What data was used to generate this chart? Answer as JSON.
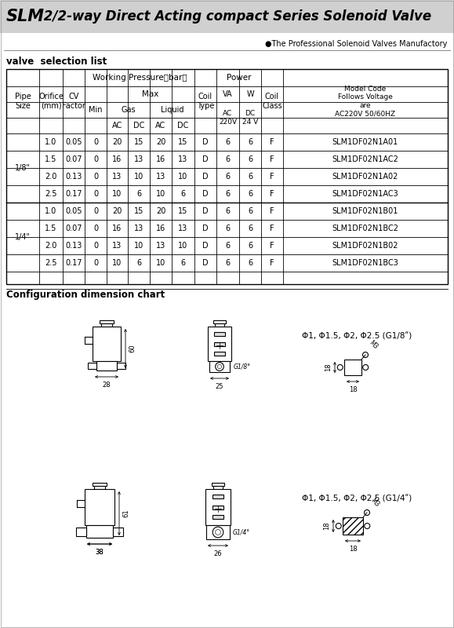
{
  "title_bold": "SLM",
  "title_rest": " 2/2-way Direct Acting compact Series Solenoid Valve",
  "subtitle": "●The Professional Solenoid Valves Manufactory",
  "section1": "valve  selection list",
  "section2": "Configuration dimension chart",
  "bg_color": "#ffffff",
  "orifice": [
    "1.0",
    "1.5",
    "2.0",
    "2.5",
    "1.0",
    "1.5",
    "2.0",
    "2.5"
  ],
  "cv_factor": [
    "0.05",
    "0.07",
    "0.13",
    "0.17",
    "0.05",
    "0.07",
    "0.13",
    "0.17"
  ],
  "min_val": [
    "0",
    "0",
    "0",
    "0",
    "0",
    "0",
    "0",
    "0"
  ],
  "gas_ac": [
    "20",
    "16",
    "13",
    "10",
    "20",
    "16",
    "13",
    "10"
  ],
  "gas_dc": [
    "15",
    "13",
    "10",
    "6",
    "15",
    "13",
    "10",
    "6"
  ],
  "liq_ac": [
    "20",
    "16",
    "13",
    "10",
    "20",
    "16",
    "13",
    "10"
  ],
  "liq_dc": [
    "15",
    "13",
    "10",
    "6",
    "15",
    "13",
    "10",
    "6"
  ],
  "coil_type": [
    "D",
    "D",
    "D",
    "D",
    "D",
    "D",
    "D",
    "D"
  ],
  "va_ac": [
    "6",
    "6",
    "6",
    "6",
    "6",
    "6",
    "6",
    "6"
  ],
  "w_dc": [
    "6",
    "6",
    "6",
    "6",
    "6",
    "6",
    "6",
    "6"
  ],
  "coil_class": [
    "F",
    "F",
    "F",
    "F",
    "F",
    "F",
    "F",
    "F"
  ],
  "model_code": [
    "SLM1DF02N1A01",
    "SLM1DF02N1AC2",
    "SLM1DF02N1A02",
    "SLM1DF02N1AC3",
    "SLM1DF02N1B01",
    "SLM1DF02N1BC2",
    "SLM1DF02N1B02",
    "SLM1DF02N1BC3"
  ],
  "pipe_labels": [
    "1/8\"",
    "1/4\""
  ],
  "dim1_h": "60",
  "dim1_w1": "28",
  "dim1_w2": "25",
  "dim2_h": "61",
  "dim2_w1": "38",
  "dim2_w2": "26",
  "dim_18_side": "18",
  "dim_14_side": "18",
  "spec_18": "Φ1, Φ1.5, Φ2, Φ2.5 (G1/8ʺ)",
  "spec_14": "Φ1, Φ1.5, Φ2, Φ2.5 (G1/4ʺ)",
  "label_g18": "G1/8°",
  "label_g14": "G1/4°"
}
